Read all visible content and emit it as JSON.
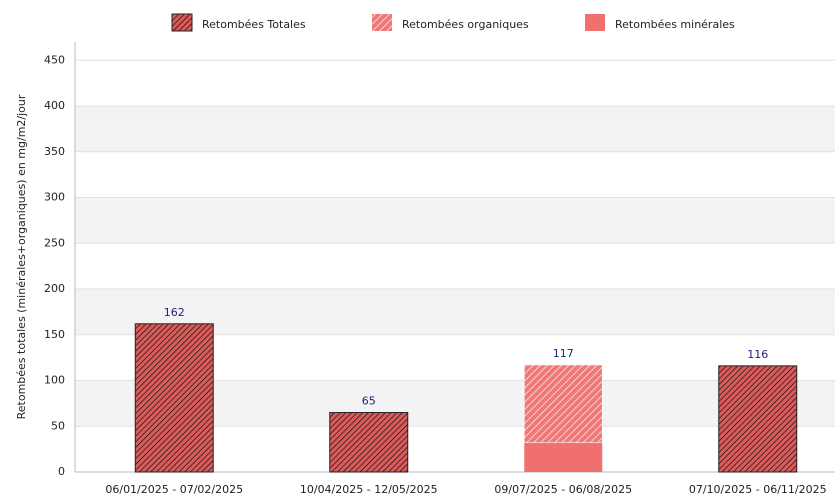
{
  "chart_data": {
    "type": "stacked_bar",
    "ylabel": "Retombées totales (minérales+organiques) en mg/m2/jour",
    "categories": [
      "06/01/2025 - 07/02/2025",
      "10/04/2025 - 12/05/2025",
      "09/07/2025 - 06/08/2025",
      "07/10/2025 - 06/11/2025"
    ],
    "series": [
      {
        "name": "Retombées Totales",
        "color": "#d85c5c",
        "values": [
          162,
          65,
          null,
          116
        ]
      },
      {
        "name": "Retombées organiques",
        "color": "#f07878",
        "values": [
          null,
          null,
          85,
          null
        ]
      },
      {
        "name": "Retombées minérales",
        "color": "#f07070",
        "values": [
          null,
          null,
          32,
          null
        ]
      }
    ],
    "totals": [
      162,
      65,
      117,
      116
    ],
    "ylim": [
      0,
      470
    ],
    "yticks": [
      0,
      50,
      100,
      150,
      200,
      250,
      300,
      350,
      400,
      450
    ],
    "grid": true
  }
}
